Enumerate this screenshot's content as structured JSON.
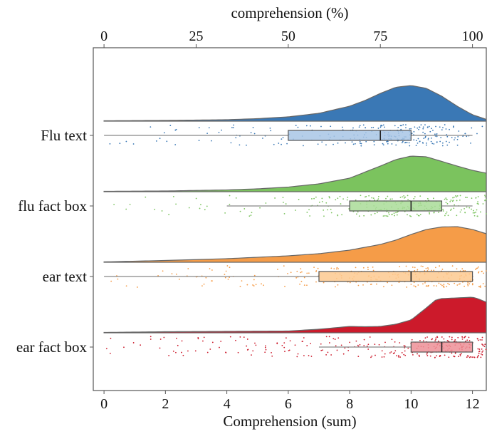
{
  "chart_data": {
    "type": "raincloud",
    "xlabel": "Comprehension (sum)",
    "top_xlabel": "comprehension (%)",
    "xlim": [
      -0.35,
      12.45
    ],
    "x_ticks": [
      0,
      2,
      4,
      6,
      8,
      10,
      12
    ],
    "top_ticks": [
      0,
      25,
      50,
      75,
      100
    ],
    "top_tick_max_sum": 12,
    "grid": false,
    "categories": [
      "Flu text",
      "flu fact box",
      "ear text",
      "ear fact box"
    ],
    "series": [
      {
        "name": "Flu text",
        "color": "#3a78b5",
        "light_color": "#a8c6e5",
        "box": {
          "q1": 6,
          "median": 9,
          "q3": 10,
          "whisker_low": 0,
          "whisker_high": 12
        },
        "density_x": [
          0,
          2,
          4,
          5,
          6,
          7,
          8,
          8.5,
          9,
          9.5,
          10,
          10.5,
          11,
          11.5,
          12,
          12.45
        ],
        "density_y": [
          0.01,
          0.02,
          0.04,
          0.07,
          0.12,
          0.22,
          0.42,
          0.58,
          0.78,
          0.95,
          1.0,
          0.92,
          0.7,
          0.42,
          0.18,
          0.05
        ],
        "point_count": 260
      },
      {
        "name": "flu fact box",
        "color": "#7bc35e",
        "light_color": "#a9dc98",
        "box": {
          "q1": 8,
          "median": 10,
          "q3": 11,
          "whisker_low": 4,
          "whisker_high": 12
        },
        "density_x": [
          0,
          2,
          4,
          5,
          6,
          7,
          8,
          8.5,
          9,
          9.5,
          10,
          10.5,
          11,
          11.5,
          12,
          12.45
        ],
        "density_y": [
          0.01,
          0.02,
          0.05,
          0.08,
          0.13,
          0.22,
          0.38,
          0.55,
          0.72,
          0.9,
          1.0,
          0.98,
          0.85,
          0.72,
          0.6,
          0.52
        ],
        "point_count": 260
      },
      {
        "name": "ear text",
        "color": "#f59c48",
        "light_color": "#fdc98f",
        "box": {
          "q1": 7,
          "median": 10,
          "q3": 12,
          "whisker_low": 0,
          "whisker_high": 12
        },
        "density_x": [
          0,
          2,
          4,
          6,
          7,
          8,
          9,
          9.5,
          10,
          10.5,
          11,
          11.5,
          12,
          12.45
        ],
        "density_y": [
          0.01,
          0.05,
          0.1,
          0.18,
          0.24,
          0.34,
          0.5,
          0.62,
          0.78,
          0.92,
          0.99,
          1.0,
          0.92,
          0.8
        ],
        "point_count": 260
      },
      {
        "name": "ear fact box",
        "color": "#cc1a2b",
        "light_color": "#ed8f96",
        "box": {
          "q1": 10,
          "median": 11,
          "q3": 12,
          "whisker_low": 7,
          "whisker_high": 12
        },
        "density_x": [
          0,
          2,
          4,
          6,
          7,
          7.5,
          8,
          8.5,
          9,
          9.5,
          10,
          10.5,
          10.8,
          11,
          11.5,
          12,
          12.2,
          12.45
        ],
        "density_y": [
          0.01,
          0.03,
          0.04,
          0.05,
          0.1,
          0.14,
          0.18,
          0.17,
          0.18,
          0.24,
          0.36,
          0.7,
          0.92,
          0.96,
          0.98,
          1.0,
          0.95,
          0.86
        ],
        "point_count": 300
      }
    ]
  }
}
